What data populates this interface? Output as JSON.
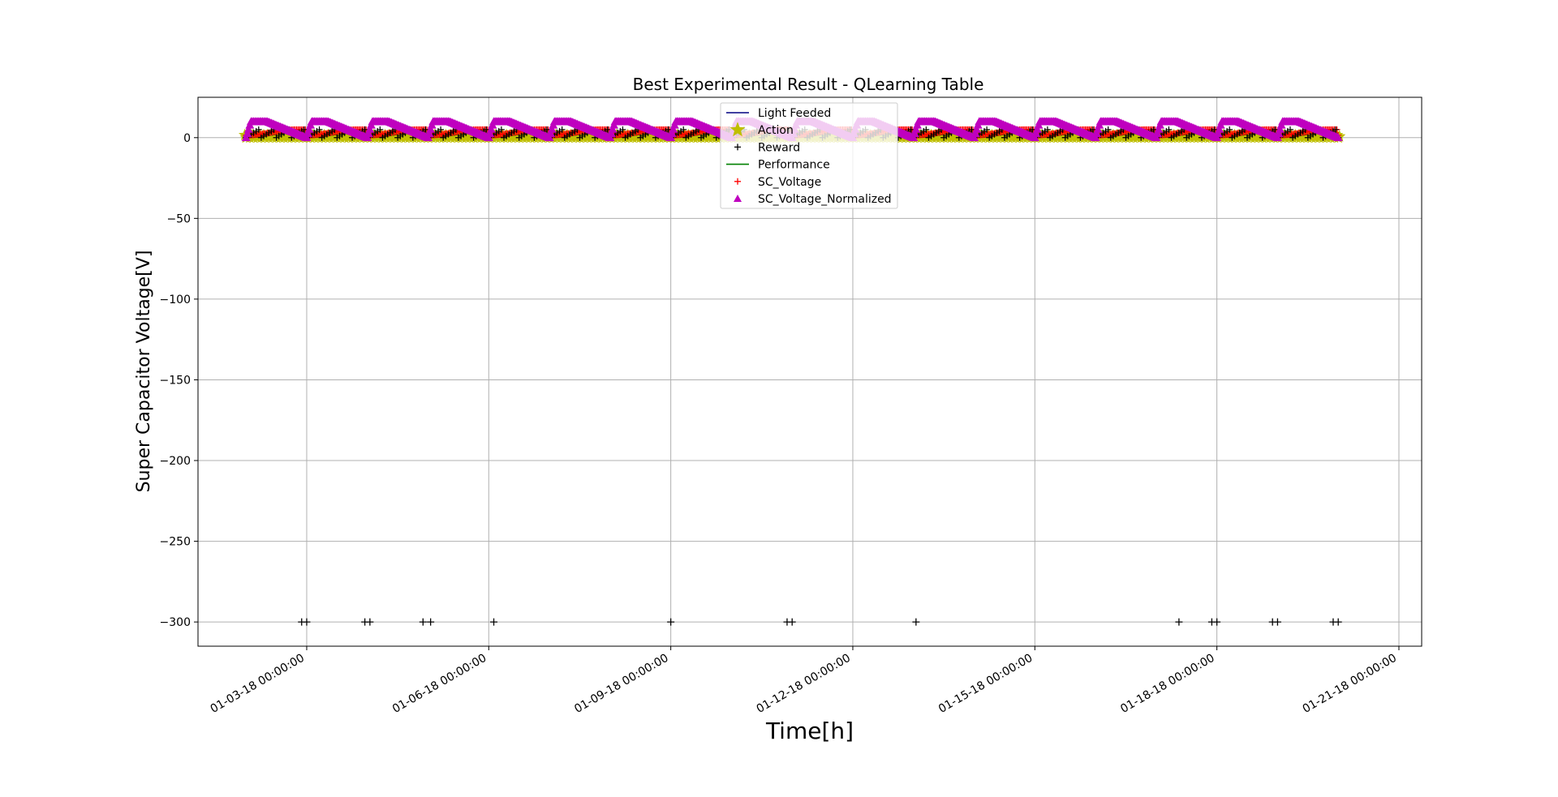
{
  "chart_data": {
    "type": "scatter",
    "title": "Best Experimental Result - QLearning Table",
    "xlabel": "Time[h]",
    "ylabel": "Super Capacitor Voltage[V]",
    "xlim": [
      "2018-01-01 05:00:00",
      "2018-01-21 09:00:00"
    ],
    "ylim": [
      -315,
      25
    ],
    "x_ticks": [
      "01-03-18 00:00:00",
      "01-06-18 00:00:00",
      "01-09-18 00:00:00",
      "01-12-18 00:00:00",
      "01-15-18 00:00:00",
      "01-18-18 00:00:00",
      "01-21-18 00:00:00"
    ],
    "y_ticks": [
      0,
      -50,
      -100,
      -150,
      -200,
      -250,
      -300
    ],
    "grid": true,
    "legend_position": "top-center",
    "data_start": "2018-01-02 00:00:00",
    "data_end": "2018-01-20 00:00:00",
    "period_hours": 24,
    "series": [
      {
        "name": "Light Feeded",
        "marker": "line",
        "color": "#000080",
        "value_range": [
          0,
          3
        ]
      },
      {
        "name": "Action",
        "marker": "star",
        "color": "#bfbf00",
        "value_range": [
          0,
          3
        ]
      },
      {
        "name": "Reward",
        "marker": "plus",
        "color": "#000000",
        "value_range": [
          0,
          6
        ],
        "outliers": {
          "y": -300,
          "x": [
            "2018-01-02 22:00:00",
            "2018-01-03 00:00:00",
            "2018-01-03 23:00:00",
            "2018-01-04 01:00:00",
            "2018-01-04 22:00:00",
            "2018-01-05 01:00:00",
            "2018-01-06 02:00:00",
            "2018-01-09 00:00:00",
            "2018-01-10 22:00:00",
            "2018-01-11 00:00:00",
            "2018-01-13 01:00:00",
            "2018-01-17 09:00:00",
            "2018-01-17 22:00:00",
            "2018-01-18 00:00:00",
            "2018-01-18 22:00:00",
            "2018-01-19 00:00:00",
            "2018-01-19 22:00:00",
            "2018-01-20 00:00:00"
          ]
        }
      },
      {
        "name": "Performance",
        "marker": "line",
        "color": "#008000",
        "value_range": [
          0,
          3
        ]
      },
      {
        "name": "SC_Voltage",
        "marker": "plus",
        "color": "#ff0000",
        "value_range": [
          1.5,
          5
        ]
      },
      {
        "name": "SC_Voltage_Normalized",
        "marker": "triangle",
        "color": "#bf00bf",
        "value_range": [
          0,
          10
        ]
      }
    ]
  }
}
